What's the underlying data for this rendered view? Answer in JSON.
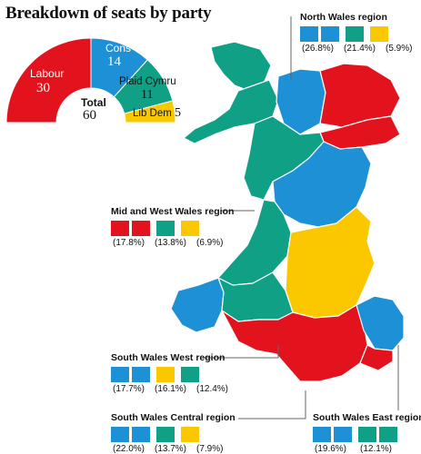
{
  "title": "Breakdown of seats by party",
  "colors": {
    "labour": "#e3131e",
    "cons": "#1e90d6",
    "plaid": "#0fa085",
    "libdem": "#fbc800",
    "outline": "#ffffff",
    "leader": "#666666"
  },
  "chart_data": {
    "type": "half-donut",
    "total_label": "Total",
    "total": 60,
    "parties": [
      {
        "name": "Labour",
        "seats": 30,
        "color": "#e3131e"
      },
      {
        "name": "Cons",
        "seats": 14,
        "color": "#1e90d6"
      },
      {
        "name": "Plaid Cymru",
        "seats": 11,
        "color": "#0fa085"
      },
      {
        "name": "Lib Dem",
        "seats": 5,
        "color": "#fbc800"
      }
    ]
  },
  "regions": [
    {
      "name": "North Wales region",
      "boxes": [
        "cons",
        "cons",
        "plaid",
        "libdem"
      ],
      "pcts": [
        "(26.8%)",
        "(21.4%)",
        "(5.9%)"
      ]
    },
    {
      "name": "Mid and West Wales region",
      "boxes": [
        "labour",
        "labour",
        "plaid",
        "libdem"
      ],
      "pcts": [
        "(17.8%)",
        "(13.8%)",
        "(6.9%)"
      ]
    },
    {
      "name": "South Wales West region",
      "boxes": [
        "cons",
        "cons",
        "libdem",
        "plaid"
      ],
      "pcts": [
        "(17.7%)",
        "(16.1%)",
        "(12.4%)"
      ]
    },
    {
      "name": "South Wales Central region",
      "boxes": [
        "cons",
        "cons",
        "plaid",
        "libdem"
      ],
      "pcts": [
        "(22.0%)",
        "(13.7%)",
        "(7.9%)"
      ]
    },
    {
      "name": "South Wales East region",
      "boxes": [
        "cons",
        "cons",
        "plaid",
        "plaid"
      ],
      "pcts": [
        "(19.6%)",
        "(12.1%)"
      ]
    }
  ]
}
